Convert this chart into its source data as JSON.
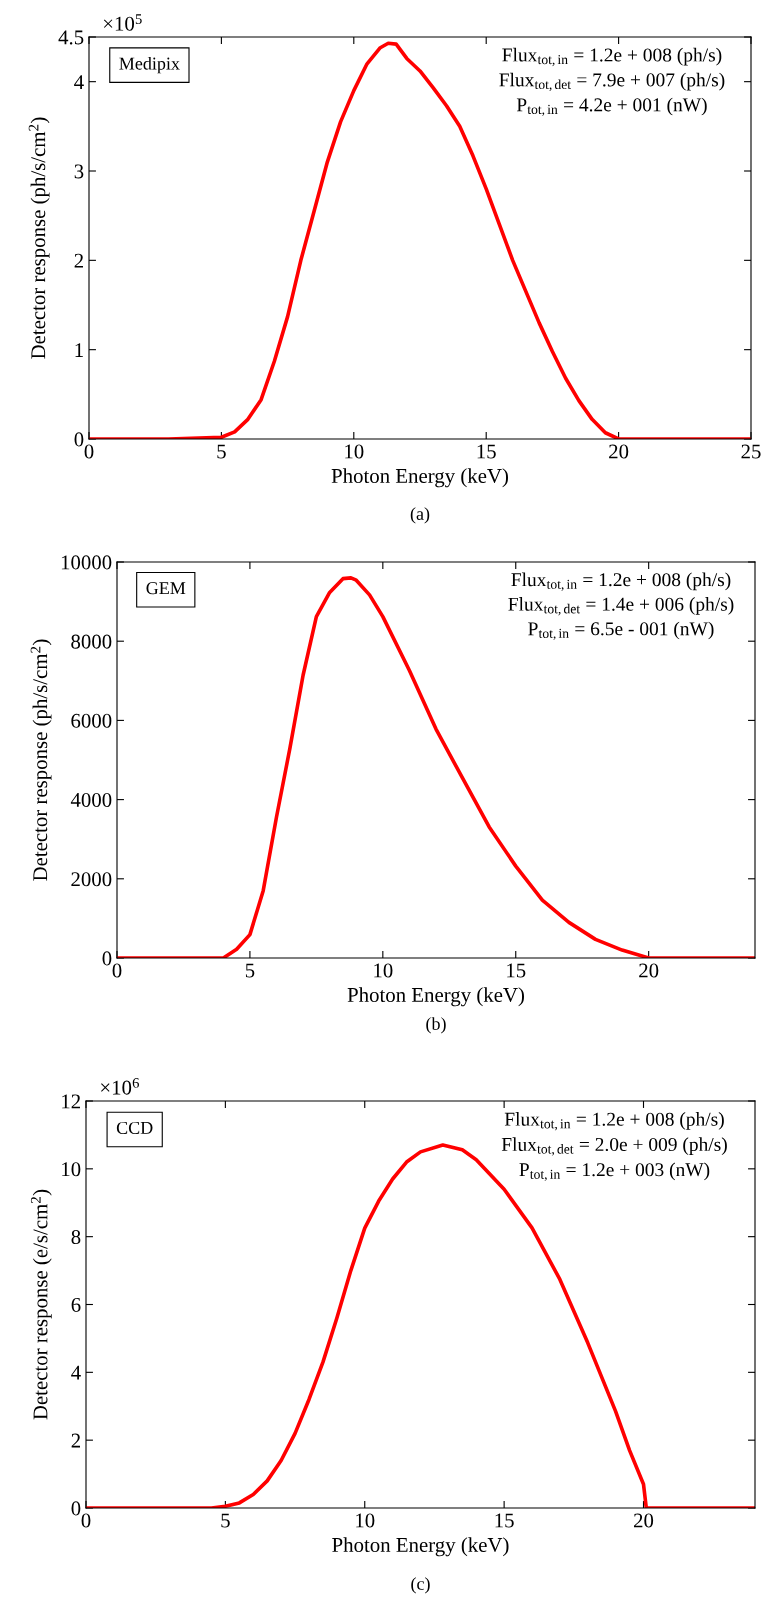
{
  "chart_data": [
    {
      "type": "line",
      "xlabel": "Photon Energy (keV)",
      "ylabel": "Detector response (ph/s/cm$^{2}$)",
      "annotations": [
        "Medipix",
        "Flux$_{tot,in}$ = 1.2e + 008 (ph/s)",
        "Flux$_{tot,det}$ = 7.9e + 007 (ph/s)",
        "P$_{tot,in}$ = 4.2e + 001 (nW)",
        "(a)",
        "×10$^{5}$"
      ],
      "xlim": [
        0,
        25
      ],
      "xticks": [
        0,
        5,
        10,
        15,
        20,
        25
      ],
      "ylim": [
        0,
        4.5
      ],
      "yticks": [
        0,
        1,
        2,
        3,
        4,
        4.5
      ],
      "grid": false,
      "legend": false,
      "marker": "none",
      "line_style": "solid",
      "series": [
        {
          "color": "#ff0000",
          "x": [
            0,
            3,
            5,
            5.5,
            6,
            6.5,
            7,
            7.5,
            8,
            8.5,
            9,
            9.5,
            10,
            10.5,
            11,
            11.3,
            11.6,
            12,
            12.5,
            13,
            13.5,
            14,
            14.5,
            15,
            15.5,
            16,
            16.5,
            17,
            17.5,
            18,
            18.5,
            19,
            19.5,
            20,
            25
          ],
          "values": [
            0,
            0,
            0.02,
            0.08,
            0.22,
            0.44,
            0.87,
            1.37,
            2.0,
            2.55,
            3.1,
            3.55,
            3.9,
            4.2,
            4.38,
            4.43,
            4.42,
            4.26,
            4.12,
            3.93,
            3.73,
            3.5,
            3.17,
            2.8,
            2.4,
            2.0,
            1.65,
            1.3,
            0.98,
            0.68,
            0.43,
            0.22,
            0.07,
            0,
            0
          ]
        }
      ]
    },
    {
      "type": "line",
      "xlabel": "Photon Energy (keV)",
      "ylabel": "Detector response (ph/s/cm$^{2}$)",
      "annotations": [
        "GEM",
        "Flux$_{tot,in}$ = 1.2e + 008 (ph/s)",
        "Flux$_{tot,det}$ = 1.4e + 006 (ph/s)",
        "P$_{tot,in}$ = 6.5e - 001 (nW)",
        "(b)"
      ],
      "xlim": [
        0,
        24
      ],
      "xticks": [
        0,
        5,
        10,
        15,
        20
      ],
      "ylim": [
        0,
        10000
      ],
      "yticks": [
        0,
        2000,
        4000,
        6000,
        8000,
        10000
      ],
      "grid": false,
      "legend": false,
      "marker": "none",
      "line_style": "solid",
      "series": [
        {
          "color": "#ff0000",
          "x": [
            0,
            4,
            4.5,
            5,
            5.5,
            6,
            6.5,
            7,
            7.5,
            8,
            8.5,
            8.8,
            9,
            9.5,
            10,
            11,
            12,
            13,
            14,
            15,
            16,
            17,
            18,
            19,
            20,
            24
          ],
          "values": [
            0,
            0,
            220,
            590,
            1700,
            3560,
            5280,
            7140,
            8620,
            9230,
            9580,
            9600,
            9540,
            9170,
            8620,
            7260,
            5780,
            4540,
            3310,
            2320,
            1460,
            900,
            470,
            200,
            0,
            0
          ]
        }
      ]
    },
    {
      "type": "line",
      "xlabel": "Photon Energy (keV)",
      "ylabel": "Detector response (e/s/cm$^{2}$)",
      "annotations": [
        "CCD",
        "Flux$_{tot,in}$ = 1.2e + 008 (ph/s)",
        "Flux$_{tot,det}$ = 2.0e + 009 (ph/s)",
        "P$_{tot,in}$ = 1.2e + 003 (nW)",
        "(c)",
        "×10$^{6}$"
      ],
      "xlim": [
        0,
        24
      ],
      "xticks": [
        0,
        5,
        10,
        15,
        20
      ],
      "ylim": [
        0,
        12
      ],
      "yticks": [
        0,
        2,
        4,
        6,
        8,
        10,
        12
      ],
      "grid": false,
      "legend": false,
      "marker": "none",
      "line_style": "solid",
      "series": [
        {
          "color": "#ff0000",
          "x": [
            0,
            4.5,
            5,
            5.5,
            6,
            6.5,
            7,
            7.5,
            8,
            8.5,
            9,
            9.5,
            10,
            10.5,
            11,
            11.5,
            12,
            12.8,
            13.5,
            14,
            15,
            16,
            17,
            18,
            19,
            19.5,
            20,
            20.1,
            24
          ],
          "values": [
            0,
            0,
            0.05,
            0.15,
            0.4,
            0.8,
            1.4,
            2.2,
            3.2,
            4.3,
            5.6,
            7.0,
            8.25,
            9.05,
            9.7,
            10.2,
            10.5,
            10.7,
            10.56,
            10.27,
            9.4,
            8.26,
            6.74,
            4.87,
            2.85,
            1.7,
            0.7,
            0,
            0
          ]
        }
      ]
    }
  ]
}
